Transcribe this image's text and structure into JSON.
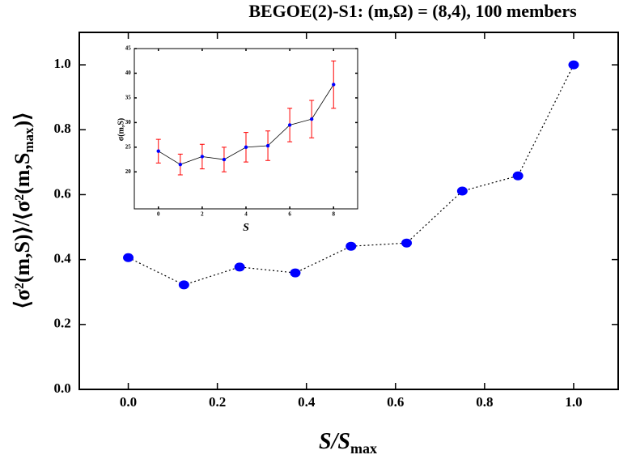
{
  "chart_data": [
    {
      "type": "scatter-line",
      "title": "BEGOE(2)-S1: (m,Ω) = (8,4), 100 members",
      "x_label": {
        "main": "S/S",
        "sub": "max"
      },
      "y_label": {
        "main": "⟨σ²(m,S)⟩/⟨σ²(m,S",
        "sub": "max",
        "end": ")⟩"
      },
      "x": [
        0,
        0.125,
        0.25,
        0.375,
        0.5,
        0.625,
        0.75,
        0.875,
        1.0
      ],
      "series": [
        {
          "color": "#0000ff",
          "values": [
            0.406,
            0.322,
            0.377,
            0.359,
            0.441,
            0.451,
            0.611,
            0.658,
            1.0
          ]
        }
      ],
      "xlim": [
        -0.11,
        1.1
      ],
      "ylim": [
        0,
        1.1
      ],
      "xticks": [
        {
          "value": 0,
          "label": "0.0"
        },
        {
          "value": 0.2,
          "label": "0.2"
        },
        {
          "value": 0.4,
          "label": "0.4"
        },
        {
          "value": 0.6,
          "label": "0.6"
        },
        {
          "value": 0.8,
          "label": "0.8"
        },
        {
          "value": 1.0,
          "label": "1.0"
        }
      ],
      "yticks": [
        {
          "value": 0,
          "label": "0.0"
        },
        {
          "value": 0.2,
          "label": "0.2"
        },
        {
          "value": 0.4,
          "label": "0.4"
        },
        {
          "value": 0.6,
          "label": "0.6"
        },
        {
          "value": 0.8,
          "label": "0.8"
        },
        {
          "value": 1.0,
          "label": "1.0"
        }
      ]
    },
    {
      "type": "errorbar",
      "x_label": "S",
      "y_label": "σ(m,S)",
      "x": [
        0,
        1,
        2,
        3,
        4,
        5,
        6,
        7,
        8
      ],
      "series": [
        {
          "color": "#0000ff",
          "error_color": "#ff0000",
          "values": [
            24.2,
            21.5,
            23.1,
            22.5,
            25.0,
            25.3,
            29.5,
            30.7,
            37.7
          ],
          "errors": [
            2.4,
            2.1,
            2.5,
            2.5,
            3.0,
            3.0,
            3.4,
            3.8,
            4.8
          ]
        }
      ],
      "xlim": [
        -1.1,
        9.1
      ],
      "ylim": [
        12.5,
        45
      ],
      "xticks": [
        0,
        2,
        4,
        6,
        8
      ],
      "yticks": [
        20,
        25,
        30,
        35,
        40,
        45
      ]
    }
  ]
}
